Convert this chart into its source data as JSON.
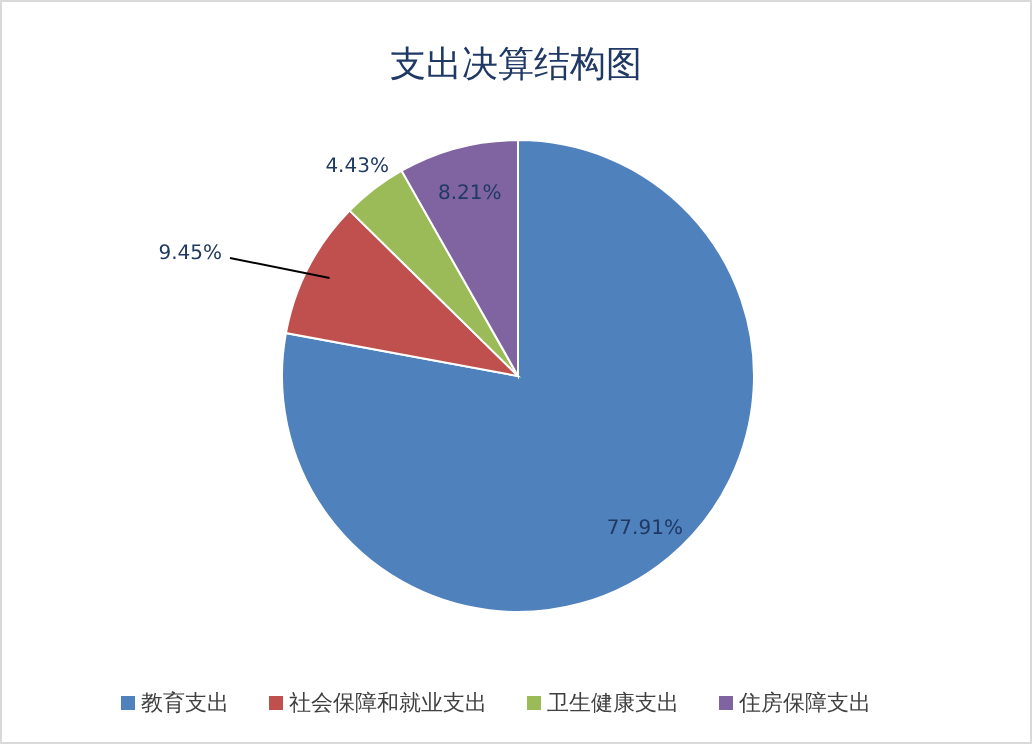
{
  "chart_data": {
    "type": "pie",
    "title": "支出决算结构图",
    "categories": [
      "教育支出",
      "社会保障和就业支出",
      "卫生健康支出",
      "住房保障支出"
    ],
    "values": [
      77.91,
      9.45,
      4.43,
      8.21
    ],
    "value_labels": [
      "77.91%",
      "9.45%",
      "4.43%",
      "8.21%"
    ],
    "colors": [
      "#4f81bd",
      "#c0504d",
      "#9bbb59",
      "#8064a2"
    ],
    "legend": "bottom"
  }
}
